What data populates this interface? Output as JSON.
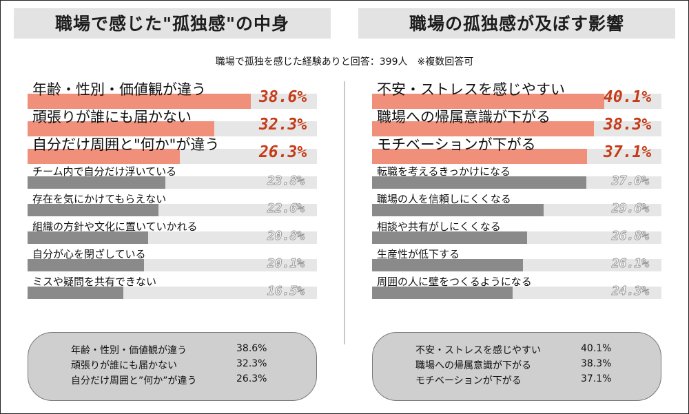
{
  "subtitle": "職場で孤独を感じた経験ありと回答：399人　※複数回答可",
  "colors": {
    "highlight": "#f0907a",
    "highlight_text": "#c63a17",
    "regular": "#8a8a8a",
    "track": "#e6e6e6"
  },
  "chart_data": [
    {
      "type": "bar",
      "orientation": "horizontal",
      "title": "職場で感じた\"孤独感\"の中身",
      "xlim": [
        0,
        50
      ],
      "highlight_count": 3,
      "categories": [
        "年齢・性別・価値観が違う",
        "頑張りが誰にも届かない",
        "自分だけ周囲と\"何か\"が違う",
        "チーム内で自分だけ浮いている",
        "存在を気にかけてもらえない",
        "組織の方針や文化に置いていかれる",
        "自分が心を閉ざしている",
        "ミスや疑問を共有できない"
      ],
      "values": [
        38.6,
        32.3,
        26.3,
        23.8,
        22.6,
        20.8,
        20.1,
        16.5
      ],
      "value_labels": [
        "38.6%",
        "32.3%",
        "26.3%",
        "23.8%",
        "22.6%",
        "20.8%",
        "20.1%",
        "16.5%"
      ],
      "summary": [
        {
          "label": "年齢・性別・価値観が違う",
          "value": "38.6%"
        },
        {
          "label": "頑張りが誰にも届かない",
          "value": "32.3%"
        },
        {
          "label": "自分だけ周囲と”何か”が違う",
          "value": "26.3%"
        }
      ]
    },
    {
      "type": "bar",
      "orientation": "horizontal",
      "title": "職場の孤独感が及ぼす影響",
      "xlim": [
        0,
        50
      ],
      "highlight_count": 3,
      "categories": [
        "不安・ストレスを感じやすい",
        "職場への帰属意識が下がる",
        "モチベーションが下がる",
        "転職を考えるきっかけになる",
        "職場の人を信頼しにくくなる",
        "相談や共有がしにくくなる",
        "生産性が低下する",
        "周囲の人に壁をつくるようになる"
      ],
      "values": [
        40.1,
        38.3,
        37.1,
        37.0,
        29.6,
        26.8,
        26.1,
        24.3
      ],
      "value_labels": [
        "40.1%",
        "38.3%",
        "37.1%",
        "37.0%",
        "29.6%",
        "26.8%",
        "26.1%",
        "24.3%"
      ],
      "summary": [
        {
          "label": "不安・ストレスを感じやすい",
          "value": "40.1%"
        },
        {
          "label": "職場への帰属意識が下がる",
          "value": "38.3%"
        },
        {
          "label": "モチベーションが下がる",
          "value": "37.1%"
        }
      ]
    }
  ]
}
